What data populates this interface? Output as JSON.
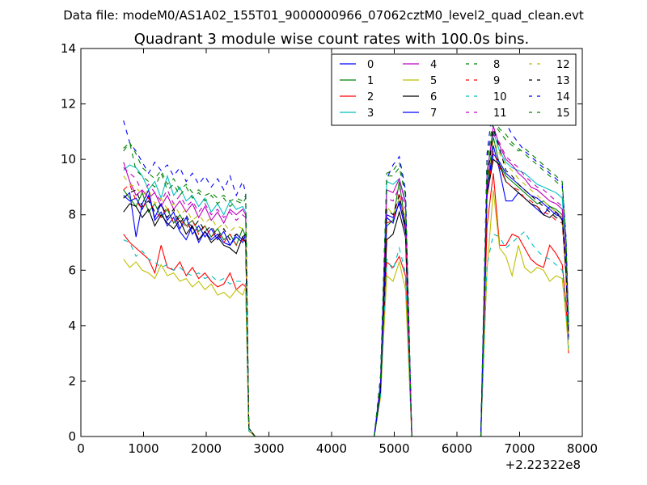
{
  "chart_data": {
    "type": "line",
    "suptitle": "Data file: modeM0/AS1A02_155T01_9000000966_07062cztM0_level2_quad_clean.evt",
    "title": "Quadrant 3 module wise count rates with 100.0s bins.",
    "xlim": [
      0,
      8000
    ],
    "ylim": [
      0,
      14
    ],
    "xticks": [
      "0",
      "1000",
      "2000",
      "3000",
      "4000",
      "5000",
      "6000",
      "7000",
      "8000"
    ],
    "yticks": [
      "0",
      "2",
      "4",
      "6",
      "8",
      "10",
      "12",
      "14"
    ],
    "x_offset_label": "+2.22322e8",
    "legend_columns": 4,
    "x": [
      680,
      780,
      880,
      980,
      1080,
      1180,
      1280,
      1380,
      1480,
      1580,
      1680,
      1780,
      1880,
      1980,
      2080,
      2180,
      2280,
      2380,
      2480,
      2580,
      2630,
      2680,
      2780,
      4680,
      4780,
      4880,
      4980,
      5080,
      5180,
      5280,
      6380,
      6480,
      6580,
      6680,
      6780,
      6880,
      6980,
      7080,
      7180,
      7280,
      7380,
      7480,
      7580,
      7680,
      7740,
      7780
    ],
    "gap_after_index": [
      22,
      29
    ],
    "series": [
      {
        "name": "0",
        "color": "#0000ff",
        "dashed": false,
        "values": [
          8.6,
          8.8,
          7.2,
          8.4,
          8.9,
          7.8,
          8.1,
          7.6,
          7.9,
          7.4,
          7.1,
          7.6,
          7.0,
          7.4,
          7.1,
          7.3,
          7.0,
          6.9,
          7.2,
          7.0,
          7.3,
          0.3,
          0.0,
          0.0,
          1.8,
          8.0,
          7.9,
          8.4,
          7.5,
          0.0,
          0.0,
          8.8,
          10.5,
          9.6,
          8.5,
          8.5,
          8.8,
          8.6,
          8.4,
          8.2,
          8.0,
          8.3,
          8.1,
          7.9,
          6.0,
          3.5
        ]
      },
      {
        "name": "1",
        "color": "#008000",
        "dashed": false,
        "values": [
          8.9,
          8.6,
          8.3,
          8.8,
          8.1,
          8.4,
          7.9,
          8.2,
          7.7,
          8.0,
          7.6,
          7.8,
          7.4,
          7.6,
          7.2,
          7.5,
          7.1,
          7.3,
          6.9,
          7.5,
          7.2,
          0.3,
          0.0,
          0.0,
          1.7,
          7.6,
          7.8,
          9.2,
          7.6,
          0.0,
          0.0,
          9.0,
          10.8,
          9.8,
          9.4,
          9.2,
          9.0,
          8.8,
          8.6,
          8.4,
          8.5,
          8.3,
          8.2,
          8.0,
          6.2,
          3.6
        ]
      },
      {
        "name": "2",
        "color": "#ff0000",
        "dashed": false,
        "values": [
          7.3,
          7.0,
          6.8,
          6.6,
          6.4,
          5.9,
          6.9,
          6.1,
          6.0,
          6.3,
          5.8,
          6.1,
          5.7,
          5.9,
          5.6,
          5.4,
          5.5,
          5.9,
          5.3,
          5.5,
          5.4,
          0.2,
          0.0,
          0.0,
          1.5,
          6.3,
          6.1,
          6.5,
          5.8,
          0.0,
          0.0,
          7.6,
          9.5,
          6.9,
          6.9,
          7.3,
          7.2,
          6.8,
          6.4,
          6.2,
          6.1,
          6.9,
          6.6,
          6.2,
          4.8,
          3.0
        ]
      },
      {
        "name": "3",
        "color": "#00bfbf",
        "dashed": false,
        "values": [
          9.6,
          9.8,
          9.7,
          9.4,
          8.9,
          9.2,
          8.6,
          9.4,
          8.7,
          9.0,
          8.5,
          8.7,
          8.3,
          8.6,
          8.1,
          8.4,
          8.0,
          8.5,
          8.2,
          8.3,
          8.1,
          0.3,
          0.0,
          0.0,
          2.0,
          9.2,
          9.1,
          9.3,
          8.5,
          0.0,
          0.0,
          9.6,
          11.0,
          10.3,
          9.9,
          9.7,
          9.6,
          9.5,
          9.3,
          9.1,
          9.0,
          8.9,
          8.8,
          8.6,
          6.5,
          3.8
        ]
      },
      {
        "name": "4",
        "color": "#bf00bf",
        "dashed": false,
        "values": [
          9.9,
          9.2,
          8.7,
          8.9,
          8.6,
          8.8,
          8.3,
          8.7,
          8.2,
          8.5,
          8.1,
          8.4,
          7.9,
          8.3,
          7.8,
          8.1,
          7.7,
          8.2,
          8.0,
          8.2,
          8.0,
          0.3,
          0.0,
          0.0,
          1.9,
          8.9,
          8.8,
          9.3,
          8.4,
          0.0,
          0.0,
          9.4,
          11.2,
          10.5,
          10.0,
          9.8,
          9.5,
          9.3,
          9.0,
          8.9,
          8.7,
          8.5,
          8.4,
          8.2,
          6.3,
          3.7
        ]
      },
      {
        "name": "5",
        "color": "#bfbf00",
        "dashed": false,
        "values": [
          6.4,
          6.1,
          6.3,
          6.0,
          5.9,
          5.7,
          6.2,
          5.8,
          5.9,
          5.6,
          5.7,
          5.4,
          5.6,
          5.3,
          5.5,
          5.1,
          5.2,
          5.0,
          5.3,
          5.1,
          5.4,
          0.2,
          0.0,
          0.0,
          1.4,
          5.8,
          5.6,
          6.3,
          5.3,
          0.0,
          0.0,
          6.0,
          8.9,
          6.8,
          6.5,
          5.8,
          6.9,
          6.1,
          5.9,
          6.1,
          6.0,
          5.6,
          5.8,
          5.7,
          4.3,
          3.1
        ]
      },
      {
        "name": "6",
        "color": "#000000",
        "dashed": false,
        "values": [
          8.1,
          8.4,
          8.3,
          7.9,
          8.2,
          7.6,
          8.0,
          7.7,
          7.5,
          7.8,
          7.3,
          7.6,
          7.1,
          7.4,
          7.0,
          7.2,
          6.9,
          6.8,
          6.6,
          7.2,
          7.0,
          0.3,
          0.0,
          0.0,
          1.6,
          7.1,
          7.3,
          8.1,
          7.2,
          0.0,
          0.0,
          8.7,
          10.0,
          9.8,
          9.2,
          9.0,
          8.8,
          8.6,
          8.4,
          8.3,
          8.0,
          7.9,
          8.1,
          7.8,
          5.8,
          3.6
        ]
      },
      {
        "name": "7",
        "color": "#0000ff",
        "dashed": false,
        "values": [
          8.7,
          8.5,
          8.6,
          8.2,
          8.7,
          7.9,
          8.4,
          7.8,
          8.1,
          7.5,
          7.9,
          7.3,
          7.6,
          7.2,
          7.5,
          7.1,
          7.4,
          6.9,
          7.3,
          7.1,
          7.2,
          0.3,
          0.0,
          0.0,
          1.7,
          7.9,
          7.7,
          8.5,
          7.4,
          0.0,
          0.0,
          8.9,
          10.2,
          9.9,
          9.5,
          9.3,
          9.1,
          8.9,
          8.7,
          8.6,
          8.4,
          8.2,
          8.0,
          7.9,
          6.0,
          3.6
        ]
      },
      {
        "name": "8",
        "color": "#008000",
        "dashed": true,
        "values": [
          10.4,
          10.6,
          9.6,
          9.4,
          9.2,
          9.0,
          9.5,
          8.9,
          9.1,
          8.7,
          9.0,
          8.6,
          8.8,
          8.5,
          8.7,
          8.4,
          8.6,
          8.3,
          8.5,
          8.4,
          8.6,
          0.3,
          0.0,
          0.0,
          2.1,
          9.5,
          9.6,
          9.9,
          8.8,
          0.0,
          0.0,
          10.0,
          11.5,
          11.1,
          10.9,
          10.6,
          10.4,
          10.2,
          10.0,
          9.8,
          9.6,
          9.4,
          9.2,
          9.0,
          7.0,
          4.0
        ]
      },
      {
        "name": "9",
        "color": "#ff0000",
        "dashed": true,
        "values": [
          8.9,
          9.1,
          8.5,
          8.2,
          8.6,
          8.1,
          7.9,
          8.3,
          7.7,
          7.9,
          7.5,
          7.8,
          7.3,
          7.6,
          7.2,
          7.4,
          7.0,
          7.3,
          6.9,
          7.1,
          7.0,
          0.3,
          0.0,
          0.0,
          1.8,
          7.7,
          7.8,
          8.8,
          7.5,
          0.0,
          0.0,
          8.6,
          10.3,
          9.7,
          9.2,
          9.0,
          8.9,
          8.6,
          8.5,
          8.3,
          8.1,
          8.0,
          7.8,
          7.7,
          5.9,
          3.5
        ]
      },
      {
        "name": "10",
        "color": "#00bfbf",
        "dashed": true,
        "values": [
          7.1,
          7.0,
          6.5,
          6.7,
          6.4,
          6.3,
          6.1,
          6.2,
          6.0,
          6.1,
          5.9,
          5.8,
          5.9,
          5.7,
          5.8,
          5.6,
          5.7,
          5.5,
          5.6,
          5.6,
          5.5,
          0.2,
          0.0,
          0.0,
          1.5,
          6.4,
          6.0,
          6.8,
          5.9,
          0.0,
          0.0,
          6.2,
          7.3,
          7.2,
          6.8,
          7.0,
          7.2,
          7.4,
          7.0,
          6.7,
          6.5,
          6.4,
          6.2,
          6.0,
          4.6,
          3.2
        ]
      },
      {
        "name": "11",
        "color": "#bf00bf",
        "dashed": true,
        "values": [
          9.7,
          9.5,
          9.3,
          8.8,
          9.1,
          8.8,
          8.5,
          8.9,
          8.4,
          8.7,
          8.3,
          8.5,
          8.1,
          8.4,
          8.0,
          8.2,
          7.9,
          8.1,
          7.8,
          8.0,
          7.9,
          0.3,
          0.0,
          0.0,
          1.9,
          8.6,
          8.5,
          9.0,
          8.2,
          0.0,
          0.0,
          9.3,
          10.9,
          10.6,
          10.1,
          9.9,
          9.7,
          9.4,
          9.2,
          9.0,
          8.9,
          8.7,
          8.5,
          8.3,
          6.4,
          3.7
        ]
      },
      {
        "name": "12",
        "color": "#bfbf00",
        "dashed": true,
        "values": [
          9.4,
          9.1,
          9.0,
          8.7,
          8.9,
          8.4,
          8.6,
          8.2,
          8.4,
          8.0,
          8.2,
          7.8,
          8.0,
          7.7,
          7.9,
          7.5,
          7.7,
          7.4,
          7.6,
          7.5,
          7.6,
          0.3,
          0.0,
          0.0,
          1.8,
          8.3,
          8.0,
          8.6,
          7.9,
          0.0,
          0.0,
          9.1,
          10.7,
          10.2,
          9.8,
          9.6,
          9.3,
          9.1,
          8.9,
          8.7,
          8.5,
          8.3,
          8.1,
          7.9,
          6.1,
          3.6
        ]
      },
      {
        "name": "13",
        "color": "#000000",
        "dashed": true,
        "values": [
          8.6,
          8.8,
          8.9,
          8.3,
          8.5,
          8.1,
          8.4,
          7.9,
          8.2,
          7.7,
          8.0,
          7.5,
          7.8,
          7.4,
          7.6,
          7.2,
          7.5,
          7.1,
          7.3,
          7.2,
          7.3,
          0.3,
          0.0,
          0.0,
          1.7,
          8.2,
          8.0,
          8.7,
          7.6,
          0.0,
          0.0,
          9.2,
          11.1,
          10.4,
          9.6,
          9.4,
          9.1,
          8.9,
          8.7,
          8.5,
          8.3,
          8.1,
          7.9,
          7.8,
          6.0,
          3.6
        ]
      },
      {
        "name": "14",
        "color": "#0000ff",
        "dashed": true,
        "values": [
          11.4,
          10.6,
          10.3,
          9.9,
          9.5,
          9.9,
          9.6,
          9.8,
          9.4,
          9.7,
          9.2,
          9.5,
          9.1,
          9.4,
          9.0,
          9.3,
          8.9,
          9.4,
          8.7,
          9.2,
          8.8,
          0.3,
          0.0,
          0.0,
          2.2,
          9.3,
          9.8,
          10.1,
          8.9,
          0.0,
          0.0,
          10.2,
          12.1,
          12.0,
          11.3,
          10.9,
          10.6,
          10.3,
          10.1,
          9.9,
          9.7,
          9.5,
          9.3,
          9.1,
          7.2,
          4.1
        ]
      },
      {
        "name": "15",
        "color": "#008000",
        "dashed": true,
        "values": [
          10.3,
          10.6,
          10.2,
          9.7,
          9.5,
          9.3,
          9.6,
          9.1,
          9.3,
          8.9,
          9.1,
          8.8,
          8.9,
          8.7,
          8.8,
          8.6,
          8.7,
          8.5,
          8.6,
          8.5,
          8.7,
          0.3,
          0.0,
          0.0,
          2.1,
          9.4,
          9.4,
          9.7,
          8.7,
          0.0,
          0.0,
          9.9,
          11.3,
          11.0,
          10.7,
          10.5,
          10.3,
          10.4,
          10.2,
          10.0,
          9.8,
          9.6,
          9.4,
          9.2,
          7.1,
          4.0
        ]
      }
    ]
  }
}
